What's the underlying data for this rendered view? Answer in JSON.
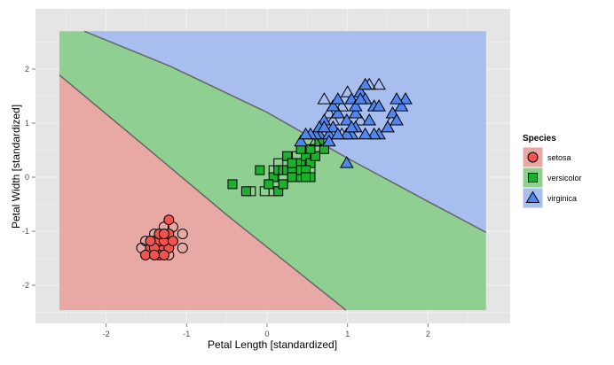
{
  "chart_data": {
    "type": "scatter",
    "xlabel": "Petal Length [standardized]",
    "ylabel": "Petal Width [standardized]",
    "xlim": [
      -2.9,
      3.0
    ],
    "ylim": [
      -2.9,
      2.9
    ],
    "xticks": [
      -2,
      -1,
      0,
      1,
      2
    ],
    "yticks": [
      -2,
      -1,
      0,
      1,
      2
    ],
    "grid": true,
    "legend": {
      "title": "Species",
      "position": "right",
      "entries": [
        "setosa",
        "versicolor",
        "virginica"
      ]
    },
    "colors": {
      "setosa": "#F8766D",
      "versicolor": "#00BA38",
      "virginica": "#619CFF"
    },
    "markers": {
      "setosa": "circle",
      "versicolor": "square",
      "virginica": "triangle"
    },
    "region_extent": {
      "x": [
        -2.58,
        2.72
      ],
      "y": [
        -2.46,
        2.7
      ]
    },
    "boundaries": [
      {
        "between": [
          "setosa",
          "versicolor"
        ],
        "points": [
          [
            -2.58,
            1.89
          ],
          [
            -1.5,
            0.55
          ],
          [
            -0.5,
            -0.7
          ],
          [
            0.3,
            -1.65
          ],
          [
            0.98,
            -2.46
          ]
        ]
      },
      {
        "between": [
          "versicolor",
          "virginica"
        ],
        "points": [
          [
            -2.27,
            2.7
          ],
          [
            -1.2,
            2.05
          ],
          [
            0,
            1.2
          ],
          [
            1.0,
            0.35
          ],
          [
            2.0,
            -0.45
          ],
          [
            2.72,
            -1.02
          ]
        ]
      }
    ],
    "series": [
      {
        "name": "setosa",
        "filled": [
          [
            -1.34,
            -1.31
          ],
          [
            -1.4,
            -1.18
          ],
          [
            -1.28,
            -1.31
          ],
          [
            -1.34,
            -1.18
          ],
          [
            -1.22,
            -1.31
          ],
          [
            -1.45,
            -1.31
          ],
          [
            -1.34,
            -1.44
          ],
          [
            -1.51,
            -1.44
          ],
          [
            -1.28,
            -1.18
          ],
          [
            -1.4,
            -1.31
          ],
          [
            -1.22,
            -1.05
          ],
          [
            -1.28,
            -1.44
          ],
          [
            -1.17,
            -1.18
          ],
          [
            -1.34,
            -1.05
          ],
          [
            -1.22,
            -0.79
          ],
          [
            -1.4,
            -1.44
          ],
          [
            -1.28,
            -1.05
          ],
          [
            -1.45,
            -1.18
          ]
        ],
        "hollow": [
          [
            -1.56,
            -1.31
          ],
          [
            -1.05,
            -1.31
          ],
          [
            -1.05,
            -1.05
          ],
          [
            -1.17,
            -0.92
          ],
          [
            -1.4,
            -1.05
          ],
          [
            -1.51,
            -1.18
          ],
          [
            -1.22,
            -1.44
          ],
          [
            -1.28,
            -0.92
          ]
        ]
      },
      {
        "name": "versicolor",
        "filled": [
          [
            -0.43,
            -0.13
          ],
          [
            -0.26,
            -0.26
          ],
          [
            0.14,
            -0.26
          ],
          [
            -0.09,
            0.13
          ],
          [
            0.08,
            -0.0
          ],
          [
            0.14,
            0.13
          ],
          [
            0.2,
            0.13
          ],
          [
            0.25,
            0.13
          ],
          [
            0.31,
            0.13
          ],
          [
            0.37,
            0.0
          ],
          [
            0.42,
            0.26
          ],
          [
            0.48,
            0.39
          ],
          [
            0.54,
            0.26
          ],
          [
            0.6,
            0.39
          ],
          [
            0.65,
            0.66
          ],
          [
            0.25,
            0.39
          ],
          [
            0.37,
            0.26
          ],
          [
            0.42,
            0.13
          ],
          [
            0.48,
            0.13
          ],
          [
            0.54,
            -0.0
          ],
          [
            0.2,
            -0.13
          ],
          [
            0.31,
            0.0
          ],
          [
            0.71,
            0.52
          ],
          [
            0.48,
            -0.0
          ],
          [
            0.02,
            -0.13
          ],
          [
            0.54,
            0.52
          ],
          [
            0.42,
            0.52
          ],
          [
            0.31,
            0.26
          ]
        ],
        "hollow": [
          [
            -0.2,
            -0.26
          ],
          [
            -0.03,
            -0.26
          ],
          [
            0.08,
            0.13
          ],
          [
            0.2,
            0.0
          ],
          [
            0.14,
            0.26
          ],
          [
            0.54,
            0.13
          ],
          [
            0.6,
            0.52
          ],
          [
            0.37,
            0.39
          ],
          [
            0.08,
            -0.26
          ]
        ]
      },
      {
        "name": "virginica",
        "filled": [
          [
            0.42,
            0.66
          ],
          [
            0.65,
            0.79
          ],
          [
            0.71,
            1.05
          ],
          [
            0.77,
            0.79
          ],
          [
            0.82,
            0.92
          ],
          [
            0.88,
            1.18
          ],
          [
            0.99,
            1.05
          ],
          [
            1.05,
            0.79
          ],
          [
            1.1,
            1.18
          ],
          [
            1.16,
            1.57
          ],
          [
            1.22,
            1.44
          ],
          [
            1.27,
            1.05
          ],
          [
            1.33,
            1.31
          ],
          [
            1.39,
            0.79
          ],
          [
            1.5,
            0.92
          ],
          [
            1.56,
            1.18
          ],
          [
            1.61,
            1.05
          ],
          [
            1.67,
            1.31
          ],
          [
            1.72,
            1.44
          ],
          [
            0.99,
            0.79
          ],
          [
            0.88,
            0.79
          ],
          [
            1.05,
            1.44
          ],
          [
            1.1,
            1.31
          ],
          [
            0.6,
            0.79
          ],
          [
            1.1,
            0.92
          ],
          [
            0.77,
            0.66
          ],
          [
            0.99,
            0.26
          ],
          [
            0.65,
            0.92
          ],
          [
            1.22,
            1.71
          ],
          [
            1.33,
            0.79
          ],
          [
            0.82,
            1.31
          ],
          [
            0.71,
            0.92
          ],
          [
            0.54,
            0.79
          ],
          [
            1.05,
            0.92
          ],
          [
            1.16,
            1.44
          ],
          [
            1.22,
            0.79
          ],
          [
            1.39,
            1.31
          ],
          [
            1.61,
            1.44
          ],
          [
            0.48,
            0.79
          ],
          [
            0.88,
            1.44
          ]
        ],
        "hollow": [
          [
            0.71,
            1.44
          ],
          [
            0.82,
            1.05
          ],
          [
            0.93,
            1.31
          ],
          [
            1.05,
            0.79
          ],
          [
            0.77,
            1.18
          ],
          [
            1.16,
            1.05
          ],
          [
            1.27,
            1.71
          ],
          [
            1.39,
            1.71
          ],
          [
            1.55,
            1.05
          ],
          [
            0.6,
            0.66
          ],
          [
            0.93,
            0.79
          ],
          [
            1.0,
            1.57
          ]
        ]
      }
    ]
  }
}
